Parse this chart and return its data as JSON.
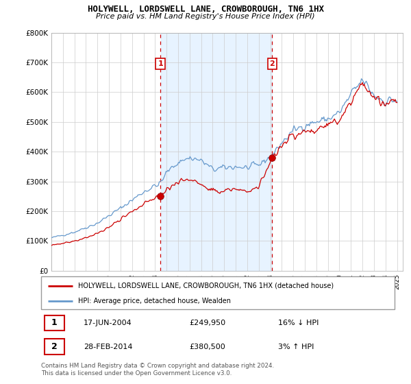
{
  "title1": "HOLYWELL, LORDSWELL LANE, CROWBOROUGH, TN6 1HX",
  "title2": "Price paid vs. HM Land Registry's House Price Index (HPI)",
  "ylim": [
    0,
    800000
  ],
  "yticks": [
    0,
    100000,
    200000,
    300000,
    400000,
    500000,
    600000,
    700000,
    800000
  ],
  "ytick_labels": [
    "£0",
    "£100K",
    "£200K",
    "£300K",
    "£400K",
    "£500K",
    "£600K",
    "£700K",
    "£800K"
  ],
  "legend_line1": "HOLYWELL, LORDSWELL LANE, CROWBOROUGH, TN6 1HX (detached house)",
  "legend_line2": "HPI: Average price, detached house, Wealden",
  "annotation1_label": "1",
  "annotation1_date": "17-JUN-2004",
  "annotation1_price": "£249,950",
  "annotation1_hpi": "16% ↓ HPI",
  "annotation2_label": "2",
  "annotation2_date": "28-FEB-2014",
  "annotation2_price": "£380,500",
  "annotation2_hpi": "3% ↑ HPI",
  "footer": "Contains HM Land Registry data © Crown copyright and database right 2024.\nThis data is licensed under the Open Government Licence v3.0.",
  "red_color": "#cc0000",
  "blue_color": "#6699cc",
  "fill_color": "#ddeeff",
  "grid_color": "#cccccc",
  "background": "#ffffff",
  "sale1_x": 2004.46,
  "sale1_y": 249950,
  "sale2_x": 2014.16,
  "sale2_y": 380500,
  "vline1_x": 2004.46,
  "vline2_x": 2014.16,
  "xlim_left": 1995.0,
  "xlim_right": 2025.5
}
